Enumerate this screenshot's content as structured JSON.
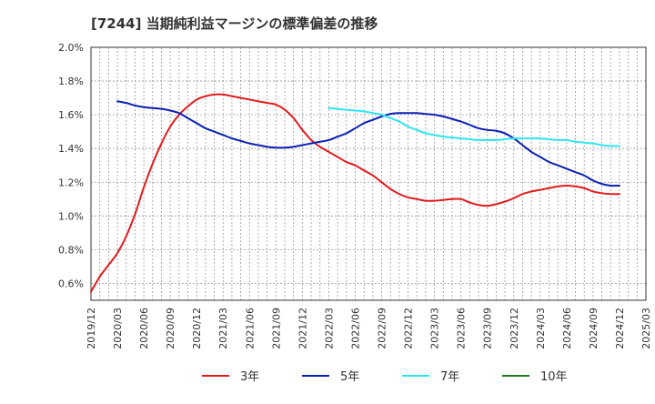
{
  "chart_data": {
    "type": "line",
    "title": "[7244]  当期純利益マージンの標準偏差の推移",
    "ylim": [
      0.5,
      2.0
    ],
    "y_ticks": [
      {
        "v": 0.6,
        "label": "0.6%"
      },
      {
        "v": 0.8,
        "label": "0.8%"
      },
      {
        "v": 1.0,
        "label": "1.0%"
      },
      {
        "v": 1.2,
        "label": "1.2%"
      },
      {
        "v": 1.4,
        "label": "1.4%"
      },
      {
        "v": 1.6,
        "label": "1.6%"
      },
      {
        "v": 1.8,
        "label": "1.8%"
      },
      {
        "v": 2.0,
        "label": "2.0%"
      }
    ],
    "x_ticks": [
      "2019/12",
      "2020/03",
      "2020/06",
      "2020/09",
      "2020/12",
      "2021/03",
      "2021/06",
      "2021/09",
      "2021/12",
      "2022/03",
      "2022/06",
      "2022/09",
      "2022/12",
      "2023/03",
      "2023/06",
      "2023/09",
      "2023/12",
      "2024/03",
      "2024/06",
      "2024/09",
      "2024/12",
      "2025/03"
    ],
    "grid": true,
    "legend_position": "bottom",
    "series": [
      {
        "name": "3年",
        "color": "#e31a1c",
        "points": [
          [
            "2019/12",
            0.55
          ],
          [
            "2020/01",
            0.64
          ],
          [
            "2020/02",
            0.71
          ],
          [
            "2020/03",
            0.78
          ],
          [
            "2020/04",
            0.88
          ],
          [
            "2020/05",
            1.01
          ],
          [
            "2020/06",
            1.17
          ],
          [
            "2020/07",
            1.31
          ],
          [
            "2020/08",
            1.43
          ],
          [
            "2020/09",
            1.53
          ],
          [
            "2020/10",
            1.6
          ],
          [
            "2020/11",
            1.65
          ],
          [
            "2020/12",
            1.69
          ],
          [
            "2021/01",
            1.71
          ],
          [
            "2021/02",
            1.72
          ],
          [
            "2021/03",
            1.72
          ],
          [
            "2021/04",
            1.71
          ],
          [
            "2021/05",
            1.7
          ],
          [
            "2021/06",
            1.69
          ],
          [
            "2021/07",
            1.68
          ],
          [
            "2021/08",
            1.67
          ],
          [
            "2021/09",
            1.66
          ],
          [
            "2021/10",
            1.63
          ],
          [
            "2021/11",
            1.58
          ],
          [
            "2021/12",
            1.51
          ],
          [
            "2022/01",
            1.45
          ],
          [
            "2022/02",
            1.41
          ],
          [
            "2022/03",
            1.38
          ],
          [
            "2022/04",
            1.35
          ],
          [
            "2022/05",
            1.32
          ],
          [
            "2022/06",
            1.3
          ],
          [
            "2022/07",
            1.27
          ],
          [
            "2022/08",
            1.24
          ],
          [
            "2022/09",
            1.2
          ],
          [
            "2022/10",
            1.16
          ],
          [
            "2022/11",
            1.13
          ],
          [
            "2022/12",
            1.11
          ],
          [
            "2023/01",
            1.1
          ],
          [
            "2023/02",
            1.09
          ],
          [
            "2023/03",
            1.09
          ],
          [
            "2023/04",
            1.095
          ],
          [
            "2023/05",
            1.1
          ],
          [
            "2023/06",
            1.1
          ],
          [
            "2023/07",
            1.08
          ],
          [
            "2023/08",
            1.065
          ],
          [
            "2023/09",
            1.06
          ],
          [
            "2023/10",
            1.07
          ],
          [
            "2023/11",
            1.085
          ],
          [
            "2023/12",
            1.105
          ],
          [
            "2024/01",
            1.13
          ],
          [
            "2024/02",
            1.145
          ],
          [
            "2024/03",
            1.155
          ],
          [
            "2024/04",
            1.165
          ],
          [
            "2024/05",
            1.175
          ],
          [
            "2024/06",
            1.18
          ],
          [
            "2024/07",
            1.175
          ],
          [
            "2024/08",
            1.165
          ],
          [
            "2024/09",
            1.145
          ],
          [
            "2024/10",
            1.135
          ],
          [
            "2024/11",
            1.13
          ],
          [
            "2024/12",
            1.13
          ]
        ]
      },
      {
        "name": "5年",
        "color": "#0a1fb5",
        "points": [
          [
            "2020/03",
            1.68
          ],
          [
            "2020/04",
            1.67
          ],
          [
            "2020/05",
            1.655
          ],
          [
            "2020/06",
            1.645
          ],
          [
            "2020/07",
            1.64
          ],
          [
            "2020/08",
            1.635
          ],
          [
            "2020/09",
            1.625
          ],
          [
            "2020/10",
            1.61
          ],
          [
            "2020/11",
            1.58
          ],
          [
            "2020/12",
            1.55
          ],
          [
            "2021/01",
            1.52
          ],
          [
            "2021/02",
            1.5
          ],
          [
            "2021/03",
            1.48
          ],
          [
            "2021/04",
            1.46
          ],
          [
            "2021/05",
            1.445
          ],
          [
            "2021/06",
            1.43
          ],
          [
            "2021/07",
            1.42
          ],
          [
            "2021/08",
            1.41
          ],
          [
            "2021/09",
            1.405
          ],
          [
            "2021/10",
            1.405
          ],
          [
            "2021/11",
            1.41
          ],
          [
            "2021/12",
            1.42
          ],
          [
            "2022/01",
            1.43
          ],
          [
            "2022/02",
            1.44
          ],
          [
            "2022/03",
            1.45
          ],
          [
            "2022/04",
            1.47
          ],
          [
            "2022/05",
            1.49
          ],
          [
            "2022/06",
            1.52
          ],
          [
            "2022/07",
            1.55
          ],
          [
            "2022/08",
            1.57
          ],
          [
            "2022/09",
            1.59
          ],
          [
            "2022/10",
            1.605
          ],
          [
            "2022/11",
            1.61
          ],
          [
            "2022/12",
            1.61
          ],
          [
            "2023/01",
            1.61
          ],
          [
            "2023/02",
            1.605
          ],
          [
            "2023/03",
            1.6
          ],
          [
            "2023/04",
            1.59
          ],
          [
            "2023/05",
            1.575
          ],
          [
            "2023/06",
            1.56
          ],
          [
            "2023/07",
            1.54
          ],
          [
            "2023/08",
            1.52
          ],
          [
            "2023/09",
            1.51
          ],
          [
            "2023/10",
            1.505
          ],
          [
            "2023/11",
            1.49
          ],
          [
            "2023/12",
            1.46
          ],
          [
            "2024/01",
            1.42
          ],
          [
            "2024/02",
            1.38
          ],
          [
            "2024/03",
            1.35
          ],
          [
            "2024/04",
            1.32
          ],
          [
            "2024/05",
            1.3
          ],
          [
            "2024/06",
            1.28
          ],
          [
            "2024/07",
            1.26
          ],
          [
            "2024/08",
            1.24
          ],
          [
            "2024/09",
            1.21
          ],
          [
            "2024/10",
            1.19
          ],
          [
            "2024/11",
            1.18
          ],
          [
            "2024/12",
            1.18
          ]
        ]
      },
      {
        "name": "7年",
        "color": "#2ee6f0",
        "points": [
          [
            "2022/03",
            1.64
          ],
          [
            "2022/04",
            1.635
          ],
          [
            "2022/05",
            1.63
          ],
          [
            "2022/06",
            1.625
          ],
          [
            "2022/07",
            1.62
          ],
          [
            "2022/08",
            1.61
          ],
          [
            "2022/09",
            1.6
          ],
          [
            "2022/10",
            1.58
          ],
          [
            "2022/11",
            1.56
          ],
          [
            "2022/12",
            1.53
          ],
          [
            "2023/01",
            1.51
          ],
          [
            "2023/02",
            1.49
          ],
          [
            "2023/03",
            1.48
          ],
          [
            "2023/04",
            1.47
          ],
          [
            "2023/05",
            1.465
          ],
          [
            "2023/06",
            1.46
          ],
          [
            "2023/07",
            1.455
          ],
          [
            "2023/08",
            1.45
          ],
          [
            "2023/09",
            1.45
          ],
          [
            "2023/10",
            1.45
          ],
          [
            "2023/11",
            1.455
          ],
          [
            "2023/12",
            1.46
          ],
          [
            "2024/01",
            1.46
          ],
          [
            "2024/02",
            1.46
          ],
          [
            "2024/03",
            1.46
          ],
          [
            "2024/04",
            1.455
          ],
          [
            "2024/05",
            1.45
          ],
          [
            "2024/06",
            1.45
          ],
          [
            "2024/07",
            1.44
          ],
          [
            "2024/08",
            1.435
          ],
          [
            "2024/09",
            1.43
          ],
          [
            "2024/10",
            1.42
          ],
          [
            "2024/11",
            1.415
          ],
          [
            "2024/12",
            1.415
          ]
        ]
      },
      {
        "name": "10年",
        "color": "#1e7a1e",
        "points": []
      }
    ]
  }
}
